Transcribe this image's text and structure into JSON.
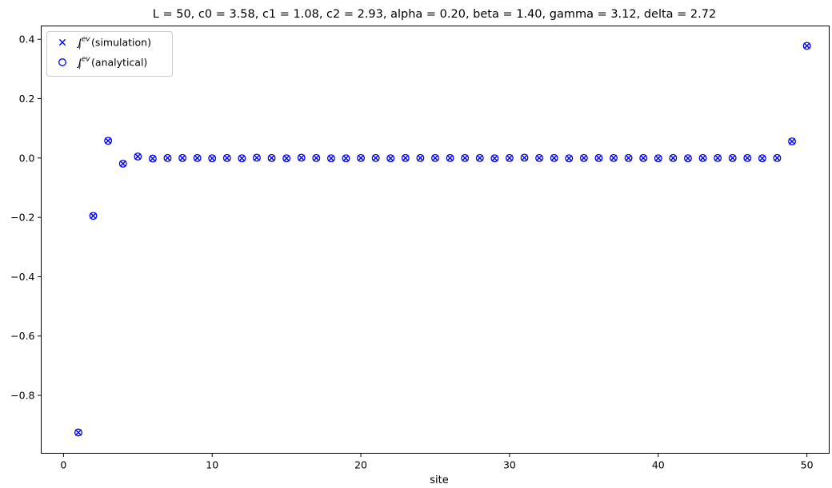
{
  "chart_data": {
    "type": "scatter",
    "title": "L = 50, c0 = 3.58, c1 = 1.08, c2 = 2.93, alpha = 0.20, beta = 1.40, gamma = 3.12, delta = 2.72",
    "xlabel": "site",
    "ylabel": "",
    "xlim": [
      -1.5,
      51.5
    ],
    "ylim": [
      -0.995,
      0.445
    ],
    "xticks": [
      0,
      10,
      20,
      30,
      40,
      50
    ],
    "xtick_labels": [
      "0",
      "10",
      "20",
      "30",
      "40",
      "50"
    ],
    "yticks": [
      -0.8,
      -0.6,
      -0.4,
      -0.2,
      0.0,
      0.2,
      0.4
    ],
    "ytick_labels": [
      "−0.8",
      "−0.6",
      "−0.4",
      "−0.2",
      "0.0",
      "0.2",
      "0.4"
    ],
    "grid": false,
    "legend_position": "top-left",
    "x": [
      1,
      2,
      3,
      4,
      5,
      6,
      7,
      8,
      9,
      10,
      11,
      12,
      13,
      14,
      15,
      16,
      17,
      18,
      19,
      20,
      21,
      22,
      23,
      24,
      25,
      26,
      27,
      28,
      29,
      30,
      31,
      32,
      33,
      34,
      35,
      36,
      37,
      38,
      39,
      40,
      41,
      42,
      43,
      44,
      45,
      46,
      47,
      48,
      49,
      50
    ],
    "series": [
      {
        "name": "simulation",
        "marker": "x",
        "color": "#0000ff",
        "values": [
          -0.925,
          -0.195,
          0.058,
          -0.019,
          0.005,
          -0.002,
          0.0,
          0.0,
          0.0,
          -0.001,
          0.0,
          -0.001,
          0.001,
          0.0,
          -0.001,
          0.001,
          0.0,
          -0.001,
          -0.001,
          0.0,
          0.0,
          -0.001,
          0.0,
          0.0,
          0.0,
          0.0,
          0.0,
          0.0,
          -0.001,
          0.0,
          0.001,
          0.0,
          0.0,
          -0.001,
          0.0,
          0.0,
          0.0,
          0.0,
          0.0,
          -0.001,
          0.0,
          -0.001,
          0.0,
          0.0,
          0.0,
          0.0,
          -0.001,
          0.0,
          0.056,
          0.378
        ]
      },
      {
        "name": "analytical",
        "marker": "o",
        "color": "#0000ff",
        "values": [
          -0.925,
          -0.195,
          0.058,
          -0.019,
          0.005,
          -0.002,
          0.0,
          0.0,
          0.0,
          -0.001,
          0.0,
          -0.001,
          0.001,
          0.0,
          -0.001,
          0.001,
          0.0,
          -0.001,
          -0.001,
          0.0,
          0.0,
          -0.001,
          0.0,
          0.0,
          0.0,
          0.0,
          0.0,
          0.0,
          -0.001,
          0.0,
          0.001,
          0.0,
          0.0,
          -0.001,
          0.0,
          0.0,
          0.0,
          0.0,
          0.0,
          -0.001,
          0.0,
          -0.001,
          0.0,
          0.0,
          0.0,
          0.0,
          -0.001,
          0.0,
          0.056,
          0.378
        ]
      }
    ],
    "legend": [
      {
        "symbol": "J",
        "subscript": "i",
        "superscript": "ev",
        "label": " (simulation)",
        "marker": "x"
      },
      {
        "symbol": "J",
        "subscript": "i",
        "superscript": "ev",
        "label": " (analytical)",
        "marker": "o"
      }
    ]
  }
}
